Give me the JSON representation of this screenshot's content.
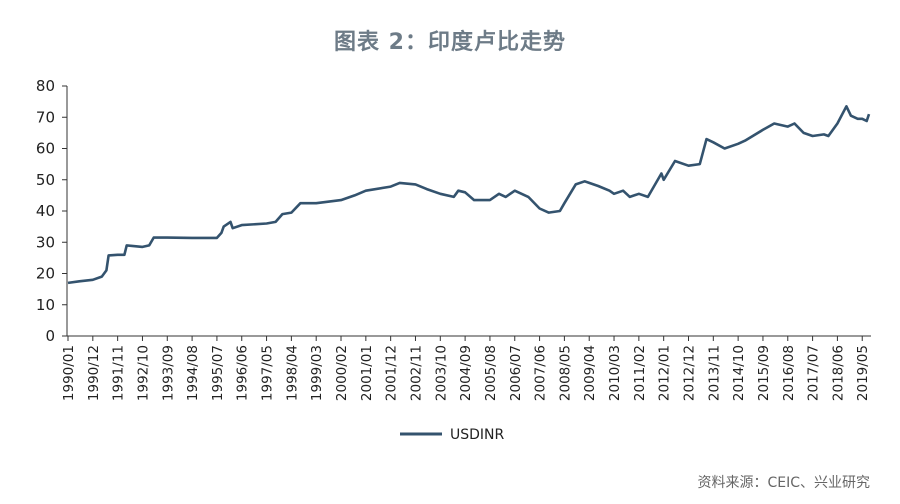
{
  "title": "图表 2：印度卢比走势",
  "source": "资料来源：CEIC、兴业研究",
  "colors": {
    "line": "#34536e",
    "axis": "#333333"
  },
  "chart_data": {
    "type": "line",
    "title": "图表 2：印度卢比走势",
    "xlabel": "",
    "ylabel": "",
    "ylim": [
      0,
      80
    ],
    "yticks": [
      0,
      10,
      20,
      30,
      40,
      50,
      60,
      70,
      80
    ],
    "x_tick_labels": [
      "1990/01",
      "1990/12",
      "1991/11",
      "1992/10",
      "1993/09",
      "1994/08",
      "1995/07",
      "1996/06",
      "1997/05",
      "1998/04",
      "1999/03",
      "2000/02",
      "2001/01",
      "2001/12",
      "2002/11",
      "2003/10",
      "2004/09",
      "2005/08",
      "2006/07",
      "2007/06",
      "2008/05",
      "2009/04",
      "2010/03",
      "2011/02",
      "2012/01",
      "2012/12",
      "2013/11",
      "2014/10",
      "2015/09",
      "2016/08",
      "2017/07",
      "2018/06",
      "2019/05"
    ],
    "grid": false,
    "legend": {
      "position": "bottom-left",
      "entries": [
        "USDINR"
      ]
    },
    "series": [
      {
        "name": "USDINR",
        "color": "#34536e",
        "points": [
          [
            "1990/01",
            17.0
          ],
          [
            "1990/06",
            17.5
          ],
          [
            "1990/12",
            18.0
          ],
          [
            "1991/04",
            19.0
          ],
          [
            "1991/06",
            21.0
          ],
          [
            "1991/07",
            25.8
          ],
          [
            "1991/11",
            26.0
          ],
          [
            "1992/02",
            26.0
          ],
          [
            "1992/03",
            29.0
          ],
          [
            "1992/10",
            28.5
          ],
          [
            "1993/01",
            29.0
          ],
          [
            "1993/03",
            31.5
          ],
          [
            "1993/09",
            31.5
          ],
          [
            "1994/08",
            31.4
          ],
          [
            "1995/07",
            31.4
          ],
          [
            "1995/09",
            33.0
          ],
          [
            "1995/10",
            35.0
          ],
          [
            "1996/01",
            36.5
          ],
          [
            "1996/02",
            34.5
          ],
          [
            "1996/06",
            35.5
          ],
          [
            "1997/05",
            36.0
          ],
          [
            "1997/09",
            36.5
          ],
          [
            "1997/12",
            39.0
          ],
          [
            "1998/04",
            39.5
          ],
          [
            "1998/08",
            42.5
          ],
          [
            "1999/03",
            42.5
          ],
          [
            "2000/02",
            43.5
          ],
          [
            "2000/08",
            45.0
          ],
          [
            "2001/01",
            46.5
          ],
          [
            "2001/12",
            47.8
          ],
          [
            "2002/04",
            49.0
          ],
          [
            "2002/11",
            48.5
          ],
          [
            "2003/04",
            47.0
          ],
          [
            "2003/10",
            45.5
          ],
          [
            "2004/04",
            44.5
          ],
          [
            "2004/06",
            46.5
          ],
          [
            "2004/09",
            46.0
          ],
          [
            "2005/01",
            43.5
          ],
          [
            "2005/08",
            43.5
          ],
          [
            "2005/12",
            45.5
          ],
          [
            "2006/03",
            44.5
          ],
          [
            "2006/07",
            46.5
          ],
          [
            "2007/01",
            44.5
          ],
          [
            "2007/06",
            40.8
          ],
          [
            "2007/10",
            39.5
          ],
          [
            "2008/03",
            40.0
          ],
          [
            "2008/05",
            42.5
          ],
          [
            "2008/10",
            48.5
          ],
          [
            "2009/02",
            49.5
          ],
          [
            "2009/04",
            49.0
          ],
          [
            "2009/08",
            48.0
          ],
          [
            "2010/01",
            46.5
          ],
          [
            "2010/03",
            45.5
          ],
          [
            "2010/07",
            46.5
          ],
          [
            "2010/10",
            44.5
          ],
          [
            "2011/02",
            45.5
          ],
          [
            "2011/06",
            44.5
          ],
          [
            "2011/12",
            52.0
          ],
          [
            "2012/01",
            50.0
          ],
          [
            "2012/06",
            56.0
          ],
          [
            "2012/12",
            54.5
          ],
          [
            "2013/05",
            55.0
          ],
          [
            "2013/08",
            63.0
          ],
          [
            "2013/11",
            62.0
          ],
          [
            "2014/04",
            60.0
          ],
          [
            "2014/10",
            61.5
          ],
          [
            "2015/01",
            62.5
          ],
          [
            "2015/09",
            66.0
          ],
          [
            "2016/02",
            68.0
          ],
          [
            "2016/08",
            67.0
          ],
          [
            "2016/11",
            68.0
          ],
          [
            "2017/03",
            65.0
          ],
          [
            "2017/07",
            64.0
          ],
          [
            "2017/12",
            64.5
          ],
          [
            "2018/02",
            64.0
          ],
          [
            "2018/06",
            68.0
          ],
          [
            "2018/10",
            73.5
          ],
          [
            "2018/12",
            70.5
          ],
          [
            "2019/03",
            69.5
          ],
          [
            "2019/05",
            69.5
          ],
          [
            "2019/07",
            68.8
          ],
          [
            "2019/08",
            71.0
          ]
        ]
      }
    ]
  }
}
